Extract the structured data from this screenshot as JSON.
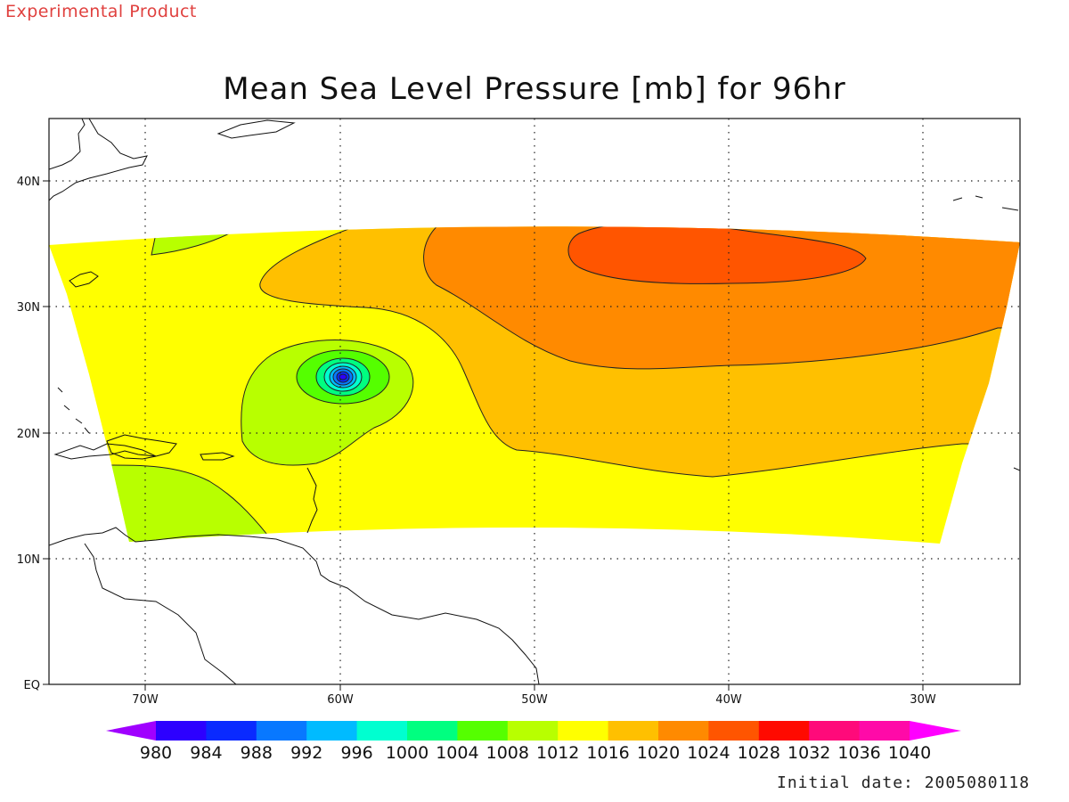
{
  "header": {
    "product_note": "Experimental Product",
    "title": "Mean Sea Level Pressure [mb] for 96hr"
  },
  "footer": {
    "initial_date": "Initial date: 2005080118"
  },
  "chart_data": {
    "type": "heatmap",
    "title": "Mean Sea Level Pressure [mb] for 96hr",
    "lon_range": [
      -75,
      -25
    ],
    "lat_range": [
      0,
      45
    ],
    "grid": true,
    "x_ticks": [
      {
        "value": -70,
        "label": "70W"
      },
      {
        "value": -60,
        "label": "60W"
      },
      {
        "value": -50,
        "label": "50W"
      },
      {
        "value": -40,
        "label": "40W"
      },
      {
        "value": -30,
        "label": "30W"
      }
    ],
    "y_ticks": [
      {
        "value": 0,
        "label": "EQ"
      },
      {
        "value": 10,
        "label": "10N"
      },
      {
        "value": 20,
        "label": "20N"
      },
      {
        "value": 30,
        "label": "30N"
      },
      {
        "value": 40,
        "label": "40N"
      }
    ],
    "colorbar": {
      "levels": [
        980,
        984,
        988,
        992,
        996,
        1000,
        1004,
        1008,
        1012,
        1016,
        1020,
        1024,
        1028,
        1032,
        1036,
        1040
      ],
      "labels": [
        "980",
        "984",
        "988",
        "992",
        "996",
        "1000",
        "1004",
        "1008",
        "1012",
        "1016",
        "1020",
        "1024",
        "1028",
        "1032",
        "1036",
        "1040"
      ],
      "colors": [
        "#a000ff",
        "#2d00ff",
        "#0a2aff",
        "#0878ff",
        "#00bbff",
        "#00ffd0",
        "#00ff80",
        "#55ff00",
        "#b8ff00",
        "#ffff00",
        "#ffc000",
        "#ff8a00",
        "#ff5500",
        "#ff0a00",
        "#ff0a7a",
        "#ff0aa8",
        "#ff00ff"
      ]
    },
    "low_center": {
      "lon": -60,
      "lat": 24.5,
      "min_pressure": 980
    },
    "high_center": {
      "lon": -42,
      "lat": 33.5,
      "max_pressure": 1028
    }
  }
}
